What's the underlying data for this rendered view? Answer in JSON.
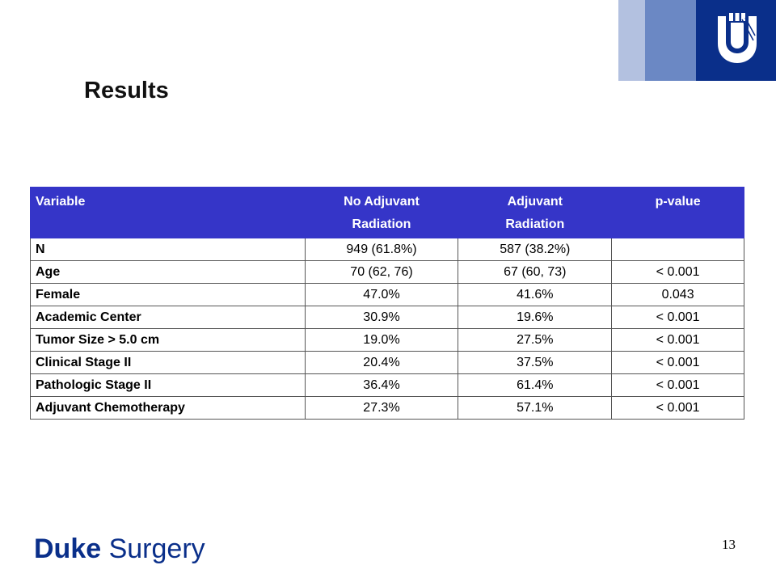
{
  "slide": {
    "title": "Results",
    "page_number": "13",
    "brand": {
      "bold": "Duke",
      "regular": "Surgery"
    },
    "colors": {
      "header_bg": "#3535c8",
      "brand_blue": "#0a2f8a",
      "bar_light": "#b3c1e0",
      "bar_mid": "#6b88c4"
    }
  },
  "table": {
    "headers": [
      {
        "line1": "Variable",
        "line2": ""
      },
      {
        "line1": "No Adjuvant",
        "line2": "Radiation"
      },
      {
        "line1": "Adjuvant",
        "line2": "Radiation"
      },
      {
        "line1": "p-value",
        "line2": ""
      }
    ],
    "rows": [
      [
        "N",
        "949 (61.8%)",
        "587 (38.2%)",
        ""
      ],
      [
        "Age",
        "70 (62, 76)",
        "67 (60, 73)",
        "< 0.001"
      ],
      [
        "Female",
        "47.0%",
        "41.6%",
        "0.043"
      ],
      [
        "Academic Center",
        "30.9%",
        "19.6%",
        "< 0.001"
      ],
      [
        "Tumor Size > 5.0 cm",
        "19.0%",
        "27.5%",
        "< 0.001"
      ],
      [
        "Clinical Stage II",
        "20.4%",
        "37.5%",
        "< 0.001"
      ],
      [
        "Pathologic Stage II",
        "36.4%",
        "61.4%",
        "< 0.001"
      ],
      [
        "Adjuvant Chemotherapy",
        "27.3%",
        "57.1%",
        "< 0.001"
      ]
    ]
  }
}
